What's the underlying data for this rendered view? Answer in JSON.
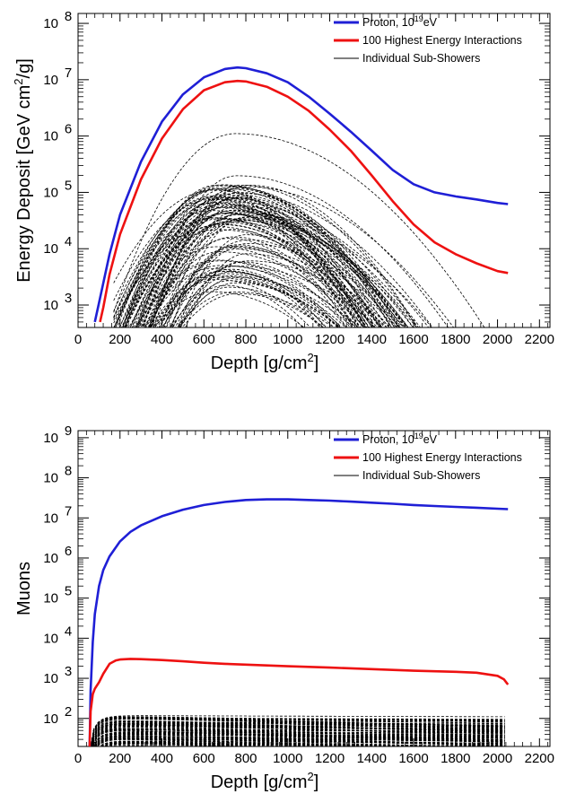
{
  "chart_data": [
    {
      "type": "line",
      "title": "",
      "xlabel": "Depth [g/cm",
      "xlabel_sup": "2",
      "xlabel_close": "]",
      "ylabel": "Energy Deposit  [GeV cm",
      "ylabel_sup": "2",
      "ylabel_close": "/g]",
      "xlim": [
        0,
        2250
      ],
      "ylim": [
        400,
        150000000
      ],
      "yscale": "log",
      "grid": false,
      "legend_position": "top-right",
      "x_ticks": [
        "0",
        "200",
        "400",
        "600",
        "800",
        "1000",
        "1200",
        "1400",
        "1600",
        "1800",
        "2000",
        "2200"
      ],
      "y_ticks": [
        {
          "base": "10",
          "exp": "3"
        },
        {
          "base": "10",
          "exp": "4"
        },
        {
          "base": "10",
          "exp": "5"
        },
        {
          "base": "10",
          "exp": "6"
        },
        {
          "base": "10",
          "exp": "7"
        },
        {
          "base": "10",
          "exp": "8"
        }
      ],
      "legend": [
        {
          "label_pre": "Proton, 10",
          "label_sup": "19",
          "label_post": "eV",
          "color": "#1f1fd6",
          "style": "solid"
        },
        {
          "label_pre": "100 Highest Energy Interactions",
          "label_sup": "",
          "label_post": "",
          "color": "#ee1111",
          "style": "solid"
        },
        {
          "label_pre": "Individual Sub-Showers",
          "label_sup": "",
          "label_post": "",
          "color": "#000000",
          "style": "thin"
        }
      ],
      "series": [
        {
          "color": "#1f1fd6",
          "x": [
            80,
            100,
            150,
            200,
            300,
            400,
            500,
            600,
            700,
            760,
            800,
            900,
            1000,
            1100,
            1200,
            1300,
            1400,
            1500,
            1600,
            1700,
            1800,
            1900,
            2000,
            2050
          ],
          "values": [
            500,
            1100,
            8000,
            40000,
            350000,
            1800000,
            5500000,
            11000000,
            15500000,
            16500000,
            16000000,
            13000000,
            9000000,
            5000000,
            2500000,
            1200000,
            550000,
            250000,
            140000,
            100000,
            85000,
            75000,
            65000,
            62000
          ]
        },
        {
          "color": "#ee1111",
          "x": [
            105,
            120,
            150,
            200,
            300,
            400,
            500,
            600,
            700,
            760,
            800,
            900,
            1000,
            1100,
            1200,
            1300,
            1400,
            1500,
            1600,
            1700,
            1800,
            1900,
            2000,
            2050
          ],
          "values": [
            500,
            900,
            3500,
            18000,
            170000,
            900000,
            3000000,
            6500000,
            9000000,
            9500000,
            9300000,
            7500000,
            5000000,
            2800000,
            1300000,
            550000,
            200000,
            70000,
            27000,
            13000,
            8000,
            5500,
            4000,
            3700
          ]
        }
      ],
      "sub_showers": {
        "color": "#000000",
        "style": "dashed",
        "count": 100,
        "peak_x_range": [
          620,
          820
        ],
        "peak_y_range": [
          1500,
          5500000
        ],
        "x_range": [
          170,
          2050
        ]
      }
    },
    {
      "type": "line",
      "title": "",
      "xlabel": "Depth [g/cm",
      "xlabel_sup": "2",
      "xlabel_close": "]",
      "ylabel": "Muons",
      "ylabel_sup": "",
      "ylabel_close": "",
      "xlim": [
        0,
        2250
      ],
      "ylim": [
        20,
        1500000000
      ],
      "yscale": "log",
      "grid": false,
      "legend_position": "top-right",
      "x_ticks": [
        "0",
        "200",
        "400",
        "600",
        "800",
        "1000",
        "1200",
        "1400",
        "1600",
        "1800",
        "2000",
        "2200"
      ],
      "y_ticks": [
        {
          "base": "10",
          "exp": "2"
        },
        {
          "base": "10",
          "exp": "3"
        },
        {
          "base": "10",
          "exp": "4"
        },
        {
          "base": "10",
          "exp": "5"
        },
        {
          "base": "10",
          "exp": "6"
        },
        {
          "base": "10",
          "exp": "7"
        },
        {
          "base": "10",
          "exp": "8"
        },
        {
          "base": "10",
          "exp": "9"
        }
      ],
      "legend": [
        {
          "label_pre": "Proton, 10",
          "label_sup": "19",
          "label_post": "eV",
          "color": "#1f1fd6",
          "style": "solid"
        },
        {
          "label_pre": "100 Highest Energy Interactions",
          "label_sup": "",
          "label_post": "",
          "color": "#ee1111",
          "style": "solid"
        },
        {
          "label_pre": "Individual Sub-Showers",
          "label_sup": "",
          "label_post": "",
          "color": "#000000",
          "style": "thin"
        }
      ],
      "series": [
        {
          "color": "#1f1fd6",
          "x": [
            55,
            60,
            70,
            80,
            100,
            120,
            150,
            200,
            250,
            300,
            400,
            500,
            600,
            700,
            800,
            900,
            1000,
            1100,
            1200,
            1300,
            1400,
            1500,
            1600,
            1700,
            1800,
            1900,
            2000,
            2050
          ],
          "values": [
            20,
            500,
            8000,
            40000,
            200000,
            500000,
            1100000,
            2600000,
            4500000,
            6500000,
            11000000,
            16000000,
            21000000,
            25000000,
            28000000,
            29000000,
            29000000,
            28000000,
            27000000,
            25500000,
            24000000,
            22500000,
            21000000,
            19800000,
            18800000,
            18000000,
            17000000,
            16500000
          ]
        },
        {
          "color": "#ee1111",
          "x": [
            55,
            60,
            70,
            80,
            100,
            120,
            150,
            180,
            200,
            250,
            300,
            400,
            500,
            600,
            700,
            800,
            900,
            1000,
            1200,
            1400,
            1600,
            1800,
            1900,
            2000,
            2030,
            2050
          ],
          "values": [
            20,
            150,
            400,
            550,
            800,
            1300,
            2300,
            2800,
            2950,
            3050,
            3000,
            2850,
            2650,
            2450,
            2300,
            2200,
            2100,
            2000,
            1850,
            1700,
            1550,
            1450,
            1380,
            1150,
            950,
            700
          ]
        }
      ],
      "sub_showers": {
        "color": "#000000",
        "style": "dashed",
        "count": 100,
        "peak_y_range": [
          18,
          120
        ],
        "x_range": [
          55,
          2050
        ]
      }
    }
  ]
}
